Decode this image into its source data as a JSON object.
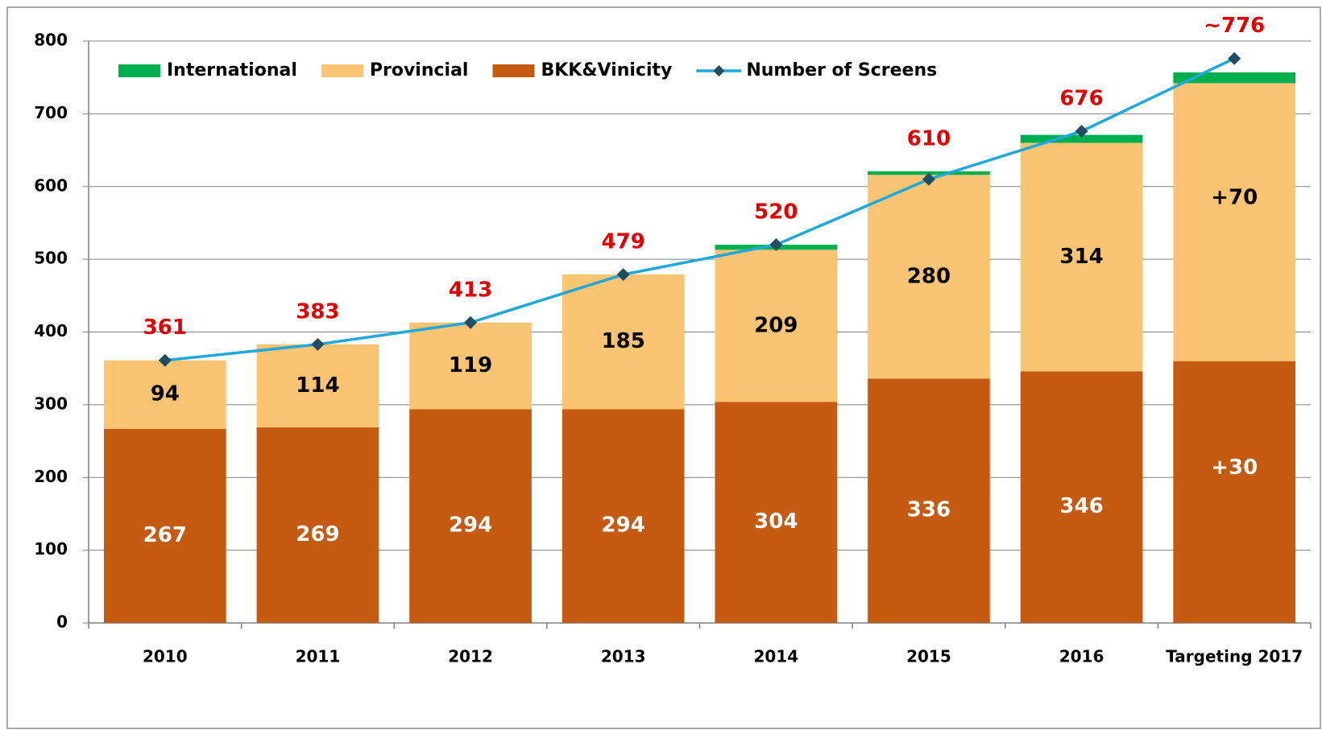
{
  "chart_data": {
    "type": "bar",
    "stacked": true,
    "categories": [
      "2010",
      "2011",
      "2012",
      "2013",
      "2014",
      "2015",
      "2016",
      "Targeting 2017"
    ],
    "series": [
      {
        "name": "International",
        "type": "bar",
        "color": "#00b050",
        "values": [
          0,
          0,
          0,
          0,
          7,
          5,
          11,
          15
        ]
      },
      {
        "name": "Provincial",
        "type": "bar",
        "color": "#fac472",
        "label_color": "#000000",
        "values": [
          94,
          114,
          119,
          185,
          209,
          280,
          314,
          382
        ],
        "value_labels": [
          "94",
          "114",
          "119",
          "185",
          "209",
          "280",
          "314",
          null
        ]
      },
      {
        "name": "BKK&Vinicity",
        "type": "bar",
        "color": "#c55a11",
        "label_color": "#ffffff",
        "values": [
          267,
          269,
          294,
          294,
          304,
          336,
          346,
          360
        ],
        "value_labels": [
          "267",
          "269",
          "294",
          "294",
          "304",
          "336",
          "346",
          null
        ]
      },
      {
        "name": "Number of Screens",
        "type": "line",
        "color": "#1fa8dc",
        "marker_color": "#1f4e63",
        "label_color": "#e00000",
        "values": [
          361,
          383,
          413,
          479,
          520,
          610,
          676,
          776
        ],
        "value_labels": [
          "361",
          "383",
          "413",
          "479",
          "520",
          "610",
          "676",
          "~776"
        ]
      }
    ],
    "annotations": [
      "+70",
      "+30"
    ],
    "ylim": [
      0,
      800
    ],
    "yticks": [
      0,
      100,
      200,
      300,
      400,
      500,
      600,
      700,
      800
    ],
    "grid": true,
    "legend": "top-left"
  }
}
